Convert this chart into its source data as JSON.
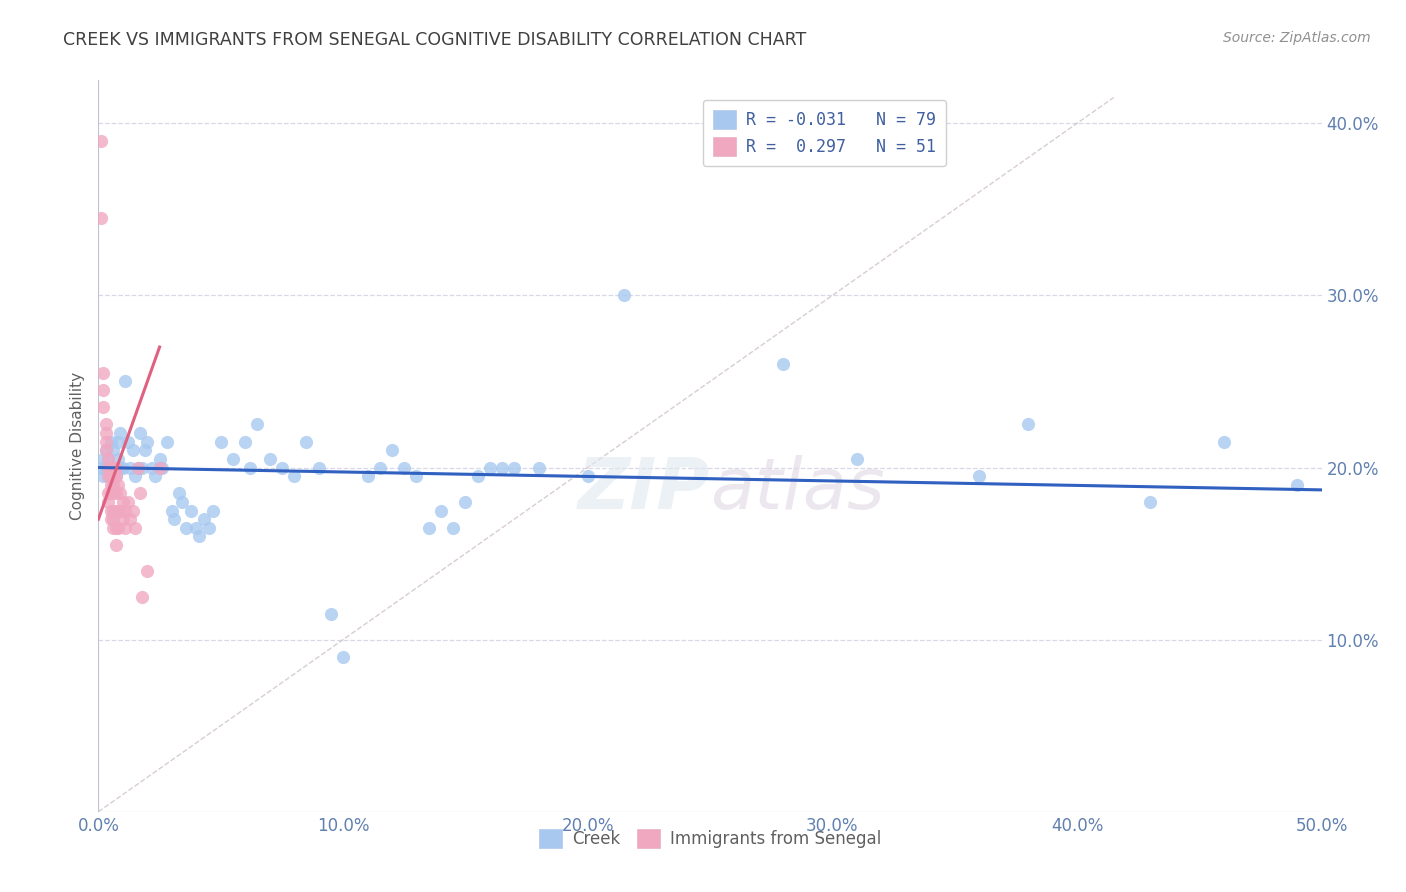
{
  "title": "CREEK VS IMMIGRANTS FROM SENEGAL COGNITIVE DISABILITY CORRELATION CHART",
  "source": "Source: ZipAtlas.com",
  "ylabel": "Cognitive Disability",
  "xlim": [
    0.0,
    0.5
  ],
  "ylim": [
    0.0,
    0.425
  ],
  "xticks": [
    0.0,
    0.1,
    0.2,
    0.3,
    0.4,
    0.5
  ],
  "yticks": [
    0.1,
    0.2,
    0.3,
    0.4
  ],
  "xticklabels": [
    "0.0%",
    "10.0%",
    "20.0%",
    "30.0%",
    "40.0%",
    "50.0%"
  ],
  "yticklabels": [
    "10.0%",
    "20.0%",
    "30.0%",
    "40.0%"
  ],
  "creek_color": "#a8c8f0",
  "senegal_color": "#f0a8c0",
  "creek_line_color": "#3060c0",
  "senegal_line_color": "#e06080",
  "diagonal_color": "#c8b8c0",
  "background_color": "#ffffff",
  "grid_color": "#d8d8e8",
  "title_color": "#404040",
  "axis_tick_color": "#6080b0",
  "creek_R": -0.031,
  "creek_N": 79,
  "senegal_R": 0.297,
  "senegal_N": 51,
  "creek_points": [
    [
      0.001,
      0.2
    ],
    [
      0.002,
      0.195
    ],
    [
      0.002,
      0.205
    ],
    [
      0.003,
      0.2
    ],
    [
      0.003,
      0.21
    ],
    [
      0.004,
      0.195
    ],
    [
      0.004,
      0.205
    ],
    [
      0.005,
      0.2
    ],
    [
      0.005,
      0.215
    ],
    [
      0.006,
      0.2
    ],
    [
      0.006,
      0.21
    ],
    [
      0.007,
      0.2
    ],
    [
      0.007,
      0.195
    ],
    [
      0.008,
      0.205
    ],
    [
      0.008,
      0.215
    ],
    [
      0.009,
      0.2
    ],
    [
      0.009,
      0.22
    ],
    [
      0.01,
      0.2
    ],
    [
      0.011,
      0.25
    ],
    [
      0.012,
      0.215
    ],
    [
      0.013,
      0.2
    ],
    [
      0.014,
      0.21
    ],
    [
      0.015,
      0.195
    ],
    [
      0.016,
      0.2
    ],
    [
      0.017,
      0.22
    ],
    [
      0.018,
      0.2
    ],
    [
      0.019,
      0.21
    ],
    [
      0.02,
      0.215
    ],
    [
      0.022,
      0.2
    ],
    [
      0.023,
      0.195
    ],
    [
      0.025,
      0.205
    ],
    [
      0.026,
      0.2
    ],
    [
      0.028,
      0.215
    ],
    [
      0.03,
      0.175
    ],
    [
      0.031,
      0.17
    ],
    [
      0.033,
      0.185
    ],
    [
      0.034,
      0.18
    ],
    [
      0.036,
      0.165
    ],
    [
      0.038,
      0.175
    ],
    [
      0.04,
      0.165
    ],
    [
      0.041,
      0.16
    ],
    [
      0.043,
      0.17
    ],
    [
      0.045,
      0.165
    ],
    [
      0.047,
      0.175
    ],
    [
      0.05,
      0.215
    ],
    [
      0.055,
      0.205
    ],
    [
      0.06,
      0.215
    ],
    [
      0.062,
      0.2
    ],
    [
      0.065,
      0.225
    ],
    [
      0.07,
      0.205
    ],
    [
      0.075,
      0.2
    ],
    [
      0.08,
      0.195
    ],
    [
      0.085,
      0.215
    ],
    [
      0.09,
      0.2
    ],
    [
      0.095,
      0.115
    ],
    [
      0.1,
      0.09
    ],
    [
      0.11,
      0.195
    ],
    [
      0.115,
      0.2
    ],
    [
      0.12,
      0.21
    ],
    [
      0.125,
      0.2
    ],
    [
      0.13,
      0.195
    ],
    [
      0.135,
      0.165
    ],
    [
      0.14,
      0.175
    ],
    [
      0.145,
      0.165
    ],
    [
      0.15,
      0.18
    ],
    [
      0.155,
      0.195
    ],
    [
      0.16,
      0.2
    ],
    [
      0.165,
      0.2
    ],
    [
      0.17,
      0.2
    ],
    [
      0.18,
      0.2
    ],
    [
      0.2,
      0.195
    ],
    [
      0.215,
      0.3
    ],
    [
      0.28,
      0.26
    ],
    [
      0.31,
      0.205
    ],
    [
      0.36,
      0.195
    ],
    [
      0.38,
      0.225
    ],
    [
      0.43,
      0.18
    ],
    [
      0.46,
      0.215
    ],
    [
      0.49,
      0.19
    ]
  ],
  "senegal_points": [
    [
      0.001,
      0.39
    ],
    [
      0.001,
      0.345
    ],
    [
      0.002,
      0.255
    ],
    [
      0.002,
      0.245
    ],
    [
      0.002,
      0.235
    ],
    [
      0.003,
      0.225
    ],
    [
      0.003,
      0.22
    ],
    [
      0.003,
      0.215
    ],
    [
      0.003,
      0.21
    ],
    [
      0.004,
      0.205
    ],
    [
      0.004,
      0.2
    ],
    [
      0.004,
      0.195
    ],
    [
      0.004,
      0.185
    ],
    [
      0.004,
      0.18
    ],
    [
      0.005,
      0.2
    ],
    [
      0.005,
      0.195
    ],
    [
      0.005,
      0.19
    ],
    [
      0.005,
      0.185
    ],
    [
      0.005,
      0.175
    ],
    [
      0.005,
      0.17
    ],
    [
      0.006,
      0.2
    ],
    [
      0.006,
      0.195
    ],
    [
      0.006,
      0.19
    ],
    [
      0.006,
      0.185
    ],
    [
      0.006,
      0.175
    ],
    [
      0.006,
      0.17
    ],
    [
      0.006,
      0.165
    ],
    [
      0.007,
      0.2
    ],
    [
      0.007,
      0.195
    ],
    [
      0.007,
      0.185
    ],
    [
      0.007,
      0.175
    ],
    [
      0.007,
      0.165
    ],
    [
      0.007,
      0.155
    ],
    [
      0.008,
      0.19
    ],
    [
      0.008,
      0.175
    ],
    [
      0.008,
      0.165
    ],
    [
      0.009,
      0.185
    ],
    [
      0.009,
      0.175
    ],
    [
      0.01,
      0.18
    ],
    [
      0.01,
      0.17
    ],
    [
      0.011,
      0.175
    ],
    [
      0.011,
      0.165
    ],
    [
      0.012,
      0.18
    ],
    [
      0.013,
      0.17
    ],
    [
      0.014,
      0.175
    ],
    [
      0.015,
      0.165
    ],
    [
      0.016,
      0.2
    ],
    [
      0.017,
      0.185
    ],
    [
      0.018,
      0.125
    ],
    [
      0.02,
      0.14
    ],
    [
      0.025,
      0.2
    ]
  ]
}
